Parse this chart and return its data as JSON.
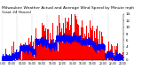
{
  "title_line1": "Milwaukee Weather Actual and Average Wind Speed by Minute mph (Last 24 Hours)",
  "title_line2": "Last 24 Hours",
  "ylim": [
    0,
    14
  ],
  "yticks": [
    0,
    2,
    4,
    6,
    8,
    10,
    12,
    14
  ],
  "background_color": "#ffffff",
  "bar_color": "#ff0000",
  "line_color": "#0000ff",
  "title_fontsize": 3.2,
  "n_points": 1440,
  "grid_color": "#bbbbbb",
  "seed": 42,
  "figwidth": 1.6,
  "figheight": 0.87,
  "dpi": 100
}
